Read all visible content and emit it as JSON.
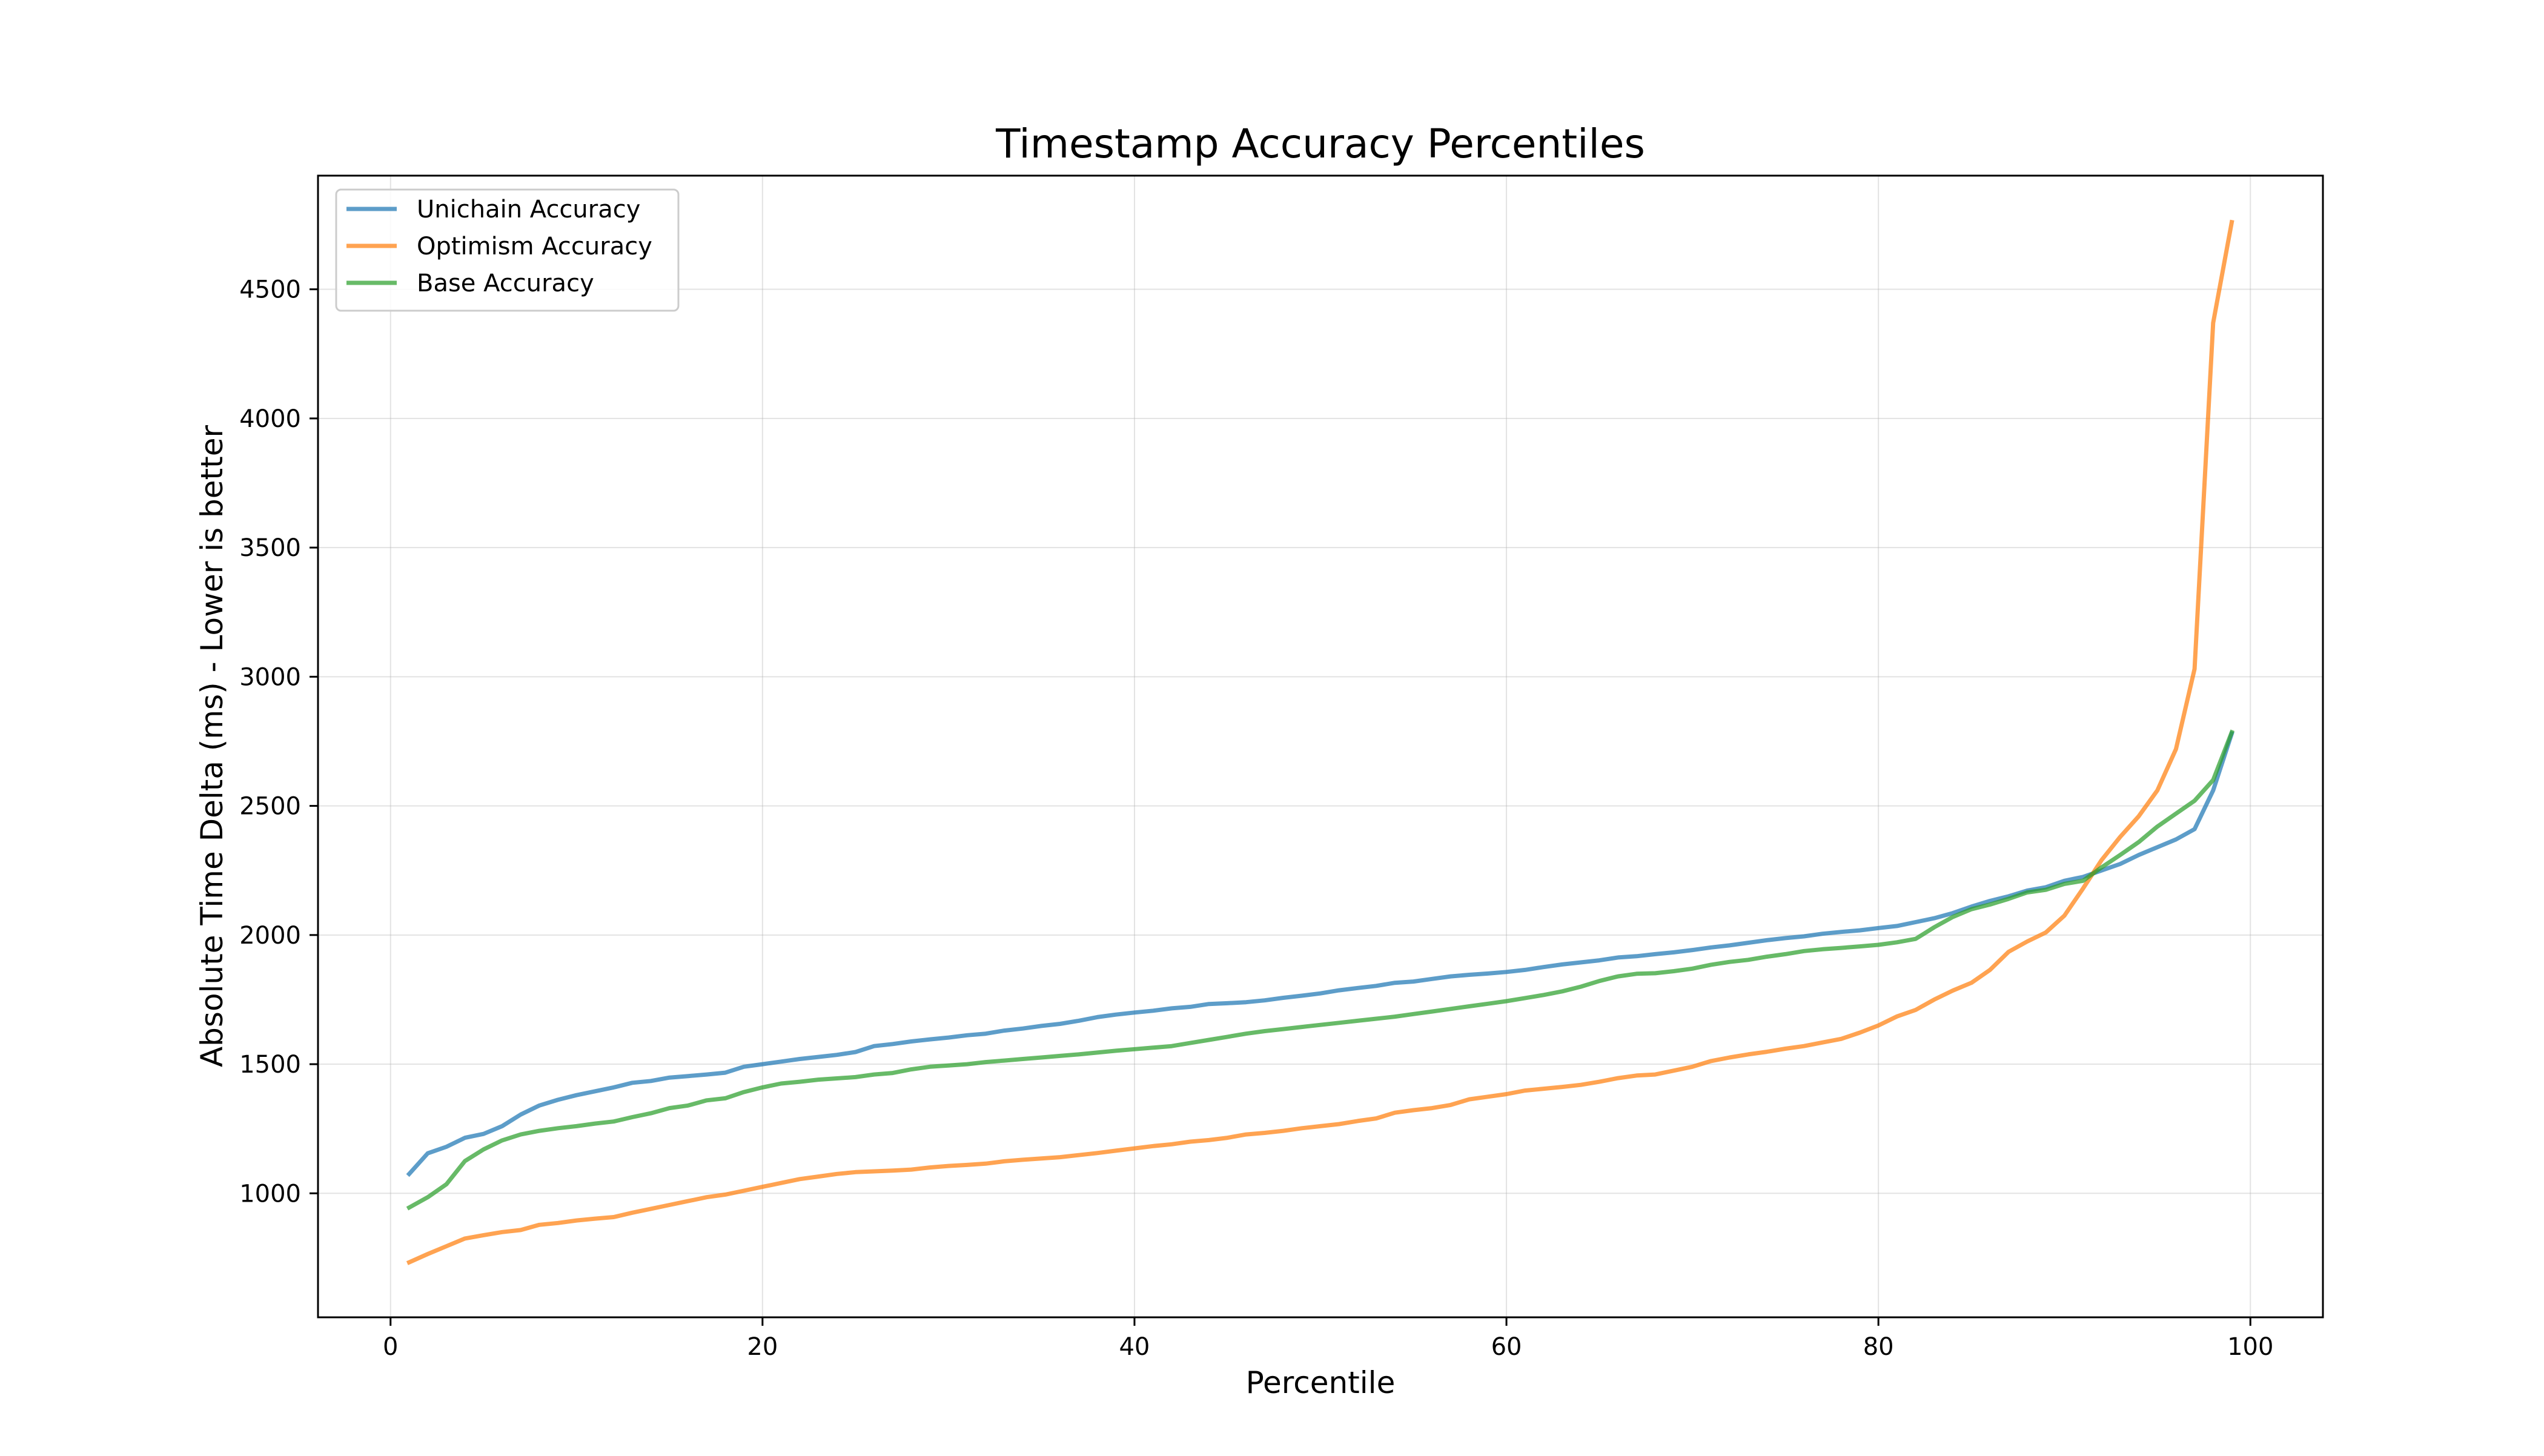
{
  "chart_data": {
    "type": "line",
    "title": "Timestamp Accuracy Percentiles",
    "xlabel": "Percentile",
    "ylabel": "Absolute Time Delta (ms) - Lower is better",
    "xlim": [
      -3.9,
      103.9
    ],
    "ylim": [
      520,
      4940
    ],
    "xticks": [
      0,
      20,
      40,
      60,
      80,
      100
    ],
    "yticks": [
      1000,
      1500,
      2000,
      2500,
      3000,
      3500,
      4000,
      4500
    ],
    "grid": true,
    "legend_position": "top-left",
    "x": [
      1,
      2,
      3,
      4,
      5,
      6,
      7,
      8,
      9,
      10,
      11,
      12,
      13,
      14,
      15,
      16,
      17,
      18,
      19,
      20,
      21,
      22,
      23,
      24,
      25,
      26,
      27,
      28,
      29,
      30,
      31,
      32,
      33,
      34,
      35,
      36,
      37,
      38,
      39,
      40,
      41,
      42,
      43,
      44,
      45,
      46,
      47,
      48,
      49,
      50,
      51,
      52,
      53,
      54,
      55,
      56,
      57,
      58,
      59,
      60,
      61,
      62,
      63,
      64,
      65,
      66,
      67,
      68,
      69,
      70,
      71,
      72,
      73,
      74,
      75,
      76,
      77,
      78,
      79,
      80,
      81,
      82,
      83,
      84,
      85,
      86,
      87,
      88,
      89,
      90,
      91,
      92,
      93,
      94,
      95,
      96,
      97,
      98,
      99
    ],
    "series": [
      {
        "name": "Unichain Accuracy",
        "color": "#1f77b4",
        "values": [
          1075,
          1155,
          1180,
          1215,
          1230,
          1260,
          1305,
          1340,
          1362,
          1380,
          1395,
          1410,
          1428,
          1435,
          1448,
          1454,
          1460,
          1467,
          1490,
          1500,
          1510,
          1520,
          1528,
          1536,
          1547,
          1570,
          1578,
          1588,
          1596,
          1603,
          1612,
          1618,
          1630,
          1638,
          1648,
          1656,
          1668,
          1682,
          1692,
          1700,
          1707,
          1716,
          1722,
          1733,
          1736,
          1740,
          1747,
          1757,
          1765,
          1774,
          1786,
          1795,
          1803,
          1815,
          1820,
          1830,
          1840,
          1846,
          1851,
          1857,
          1865,
          1876,
          1886,
          1894,
          1902,
          1913,
          1918,
          1926,
          1933,
          1942,
          1952,
          1960,
          1970,
          1980,
          1988,
          1995,
          2005,
          2012,
          2018,
          2027,
          2035,
          2050,
          2065,
          2085,
          2110,
          2132,
          2150,
          2172,
          2185,
          2210,
          2225,
          2250,
          2275,
          2310,
          2340,
          2370,
          2410,
          2560,
          2780
        ]
      },
      {
        "name": "Optimism Accuracy",
        "color": "#ff7f0e",
        "values": [
          733,
          765,
          795,
          825,
          838,
          850,
          858,
          878,
          885,
          895,
          902,
          908,
          925,
          940,
          955,
          970,
          985,
          995,
          1010,
          1025,
          1040,
          1055,
          1065,
          1075,
          1082,
          1085,
          1088,
          1092,
          1100,
          1106,
          1110,
          1115,
          1124,
          1130,
          1135,
          1140,
          1148,
          1156,
          1165,
          1174,
          1183,
          1190,
          1200,
          1206,
          1215,
          1228,
          1234,
          1242,
          1252,
          1260,
          1268,
          1280,
          1290,
          1312,
          1322,
          1330,
          1342,
          1364,
          1374,
          1384,
          1398,
          1405,
          1412,
          1420,
          1432,
          1446,
          1456,
          1460,
          1475,
          1490,
          1512,
          1526,
          1538,
          1548,
          1560,
          1570,
          1584,
          1598,
          1622,
          1650,
          1685,
          1710,
          1750,
          1785,
          1815,
          1865,
          1935,
          1975,
          2010,
          2075,
          2180,
          2290,
          2380,
          2460,
          2560,
          2720,
          3030,
          4370,
          4760
        ]
      },
      {
        "name": "Base Accuracy",
        "color": "#2ca02c",
        "values": [
          945,
          985,
          1035,
          1125,
          1170,
          1205,
          1228,
          1242,
          1252,
          1260,
          1270,
          1278,
          1295,
          1310,
          1330,
          1340,
          1360,
          1368,
          1392,
          1410,
          1425,
          1432,
          1440,
          1445,
          1450,
          1460,
          1466,
          1480,
          1490,
          1495,
          1500,
          1508,
          1514,
          1520,
          1526,
          1532,
          1538,
          1545,
          1552,
          1558,
          1564,
          1570,
          1582,
          1594,
          1606,
          1618,
          1628,
          1636,
          1644,
          1652,
          1660,
          1668,
          1676,
          1684,
          1694,
          1704,
          1714,
          1724,
          1734,
          1744,
          1756,
          1768,
          1782,
          1800,
          1822,
          1840,
          1850,
          1852,
          1860,
          1870,
          1885,
          1896,
          1904,
          1916,
          1926,
          1938,
          1945,
          1950,
          1956,
          1962,
          1972,
          1985,
          2030,
          2070,
          2100,
          2118,
          2140,
          2165,
          2175,
          2198,
          2210,
          2262,
          2310,
          2360,
          2420,
          2470,
          2520,
          2600,
          2785
        ]
      }
    ]
  }
}
